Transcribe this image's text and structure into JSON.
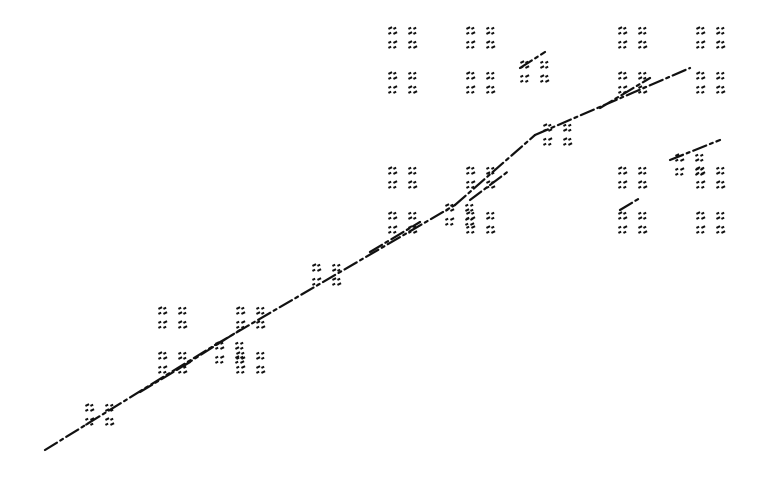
{
  "figure": {
    "description_visible_text": "",
    "background_color": "#ffffff",
    "ink_color": "#111111",
    "structure": {
      "kind": "self-similar fractal",
      "top_level_blocks": 3,
      "blocks_per_level": 4,
      "dots_per_cell": 4,
      "recursion_depth": 2
    }
  }
}
